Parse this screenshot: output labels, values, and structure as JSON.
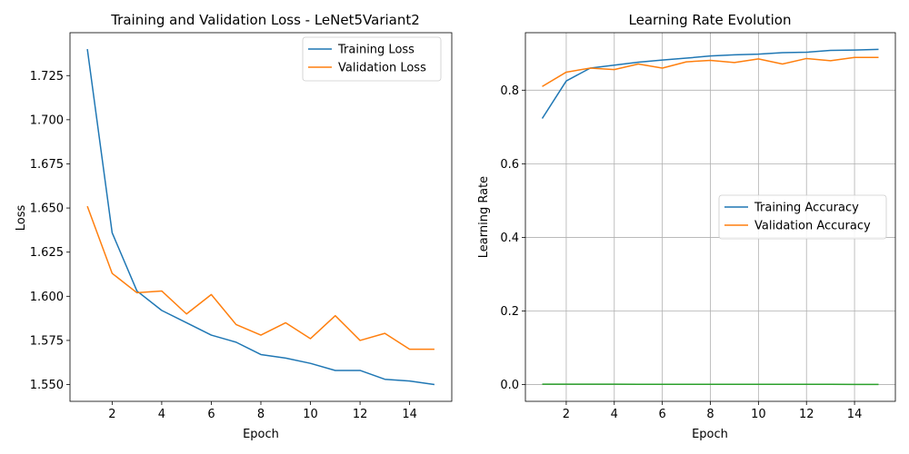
{
  "chart_data": [
    {
      "type": "line",
      "title": "Training and Validation Loss - LeNet5Variant2",
      "xlabel": "Epoch",
      "ylabel": "Loss",
      "x": [
        1,
        2,
        3,
        4,
        5,
        6,
        7,
        8,
        9,
        10,
        11,
        12,
        13,
        14,
        15
      ],
      "xlim": [
        0.3,
        15.7
      ],
      "ylim": [
        1.5405,
        1.7493
      ],
      "xticks": [
        2,
        4,
        6,
        8,
        10,
        12,
        14
      ],
      "xtick_labels": [
        "2",
        "4",
        "6",
        "8",
        "10",
        "12",
        "14"
      ],
      "yticks": [
        1.55,
        1.575,
        1.6,
        1.625,
        1.65,
        1.675,
        1.7,
        1.725
      ],
      "ytick_labels": [
        "1.550",
        "1.575",
        "1.600",
        "1.625",
        "1.650",
        "1.675",
        "1.700",
        "1.725"
      ],
      "grid": false,
      "legend_position": "top-right",
      "series": [
        {
          "name": "Training Loss",
          "color": "#1f77b4",
          "values": [
            1.74,
            1.636,
            1.603,
            1.592,
            1.585,
            1.578,
            1.574,
            1.567,
            1.565,
            1.562,
            1.558,
            1.558,
            1.553,
            1.552,
            1.55
          ]
        },
        {
          "name": "Validation Loss",
          "color": "#ff7f0e",
          "values": [
            1.651,
            1.613,
            1.602,
            1.603,
            1.59,
            1.601,
            1.584,
            1.578,
            1.585,
            1.576,
            1.589,
            1.575,
            1.579,
            1.57,
            1.57
          ]
        }
      ]
    },
    {
      "type": "line",
      "title": "Learning Rate Evolution",
      "xlabel": "Epoch",
      "ylabel": "Learning Rate",
      "x": [
        1,
        2,
        3,
        4,
        5,
        6,
        7,
        8,
        9,
        10,
        11,
        12,
        13,
        14,
        15
      ],
      "xlim": [
        0.3,
        15.7
      ],
      "ylim": [
        -0.0455,
        0.9562
      ],
      "xticks": [
        2,
        4,
        6,
        8,
        10,
        12,
        14
      ],
      "xtick_labels": [
        "2",
        "4",
        "6",
        "8",
        "10",
        "12",
        "14"
      ],
      "yticks": [
        0.0,
        0.2,
        0.4,
        0.6,
        0.8
      ],
      "ytick_labels": [
        "0.0",
        "0.2",
        "0.4",
        "0.6",
        "0.8"
      ],
      "grid": true,
      "legend_position": "center-right",
      "series": [
        {
          "name": "Training Accuracy",
          "color": "#1f77b4",
          "values": [
            0.723,
            0.825,
            0.86,
            0.868,
            0.876,
            0.882,
            0.887,
            0.893,
            0.896,
            0.898,
            0.902,
            0.903,
            0.908,
            0.909,
            0.911
          ]
        },
        {
          "name": "Validation Accuracy",
          "color": "#ff7f0e",
          "values": [
            0.81,
            0.849,
            0.86,
            0.856,
            0.871,
            0.86,
            0.877,
            0.881,
            0.875,
            0.885,
            0.871,
            0.886,
            0.88,
            0.889,
            0.889
          ]
        },
        {
          "color": "#2ca02c",
          "values": [
            0.001,
            0.001,
            0.001,
            0.001,
            0.0009,
            0.0009,
            0.0009,
            0.0009,
            0.0008,
            0.0008,
            0.0007,
            0.0007,
            0.0007,
            0.0006,
            0.0006
          ]
        }
      ]
    }
  ]
}
